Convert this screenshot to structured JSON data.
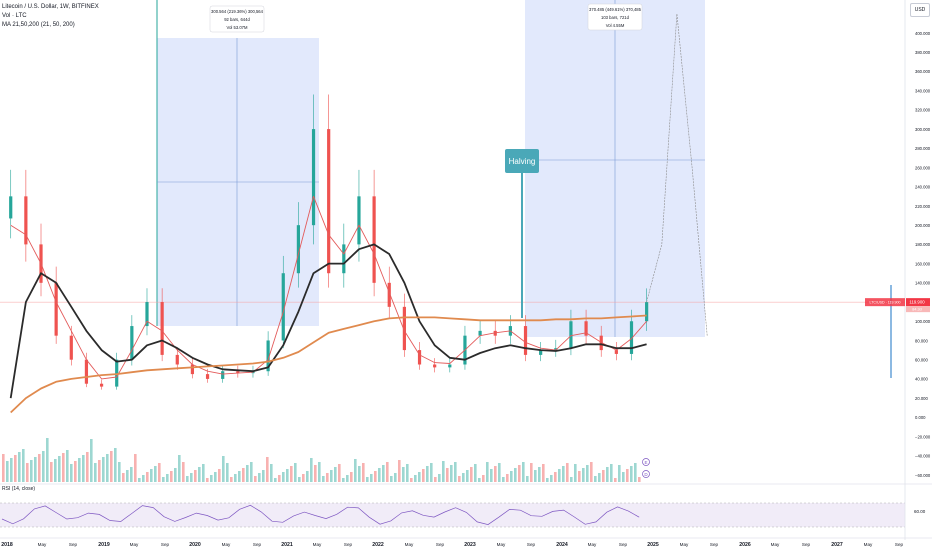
{
  "header": {
    "symbol_line": "Litecoin / U.S. Dollar, 1W, BITFINEX",
    "vol_line": "Vol · LTC",
    "ma_line": "MA 21,50,200 (21, 50, 200)",
    "currency_button": "USD"
  },
  "colors": {
    "candle_up": "#26a69a",
    "candle_down": "#ef5350",
    "ma21": "#e35b5b",
    "ma50": "#2b2b2b",
    "ma200": "#e08a4e",
    "range_fill": "#dbe3fb",
    "range_line": "#2962ff",
    "halving_marker": "#4aa8b8",
    "rsi_line": "#7e57c2",
    "last_price_badge": "#f23645"
  },
  "price_axis": {
    "labels": [
      "400.000",
      "380.000",
      "360.000",
      "340.000",
      "320.000",
      "300.000",
      "280.000",
      "260.000",
      "240.000",
      "220.000",
      "200.000",
      "180.000",
      "160.000",
      "140.000",
      "120.000",
      "100.000",
      "80.000",
      "60.000",
      "40.000",
      "20.000",
      "0.000",
      "−20.000",
      "−40.000",
      "−60.000"
    ],
    "last_price": "119.900",
    "last_price_sub": "84.3d"
  },
  "rsi": {
    "label": "RSI (14, close)",
    "axis_label": "60.00"
  },
  "time_axis": {
    "labels": [
      "2018",
      "May",
      "Sep",
      "2019",
      "May",
      "Sep",
      "2020",
      "May",
      "Sep",
      "2021",
      "May",
      "Sep",
      "2022",
      "May",
      "Sep",
      "2023",
      "May",
      "Sep",
      "2024",
      "May",
      "Sep",
      "2025",
      "May",
      "Sep",
      "2026",
      "May",
      "Sep",
      "2027",
      "May",
      "Sep"
    ]
  },
  "annotations": {
    "range1": {
      "line1": "300.564 (219.36%) 300,564",
      "line2": "92 bars, 644d",
      "line3": "Vol 53.07M"
    },
    "range2": {
      "line1": "370.485 (449.61%) 370,485",
      "line2": "103 bars, 721d",
      "line3": "Vol 4.55M"
    },
    "halving": "Halving",
    "event_markers": [
      "E",
      "D"
    ]
  },
  "chart_data": {
    "type": "candlestick",
    "title": "Litecoin / U.S. Dollar, 1W, BITFINEX",
    "ylim": [
      -65,
      420
    ],
    "x": [
      "2018-01",
      "2018-03",
      "2018-05",
      "2018-07",
      "2018-09",
      "2018-11",
      "2019-01",
      "2019-03",
      "2019-05",
      "2019-07",
      "2019-09",
      "2019-11",
      "2020-01",
      "2020-03",
      "2020-05",
      "2020-07",
      "2020-09",
      "2020-11",
      "2021-01",
      "2021-03",
      "2021-05",
      "2021-07",
      "2021-09",
      "2021-11",
      "2022-01",
      "2022-03",
      "2022-05",
      "2022-07",
      "2022-09",
      "2022-11",
      "2023-01",
      "2023-03",
      "2023-05",
      "2023-07",
      "2023-09",
      "2023-11",
      "2024-01",
      "2024-03",
      "2024-05",
      "2024-07",
      "2024-09",
      "2024-11",
      "2025-01"
    ],
    "close": [
      230,
      180,
      140,
      85,
      60,
      35,
      32,
      60,
      95,
      120,
      65,
      55,
      45,
      40,
      48,
      46,
      48,
      80,
      150,
      200,
      300,
      150,
      180,
      230,
      140,
      115,
      70,
      55,
      52,
      55,
      85,
      90,
      85,
      95,
      65,
      70,
      72,
      100,
      85,
      70,
      66,
      100,
      119.9
    ],
    "series": [
      {
        "name": "MA 21",
        "values": [
          200,
          190,
          160,
          120,
          90,
          60,
          40,
          42,
          70,
          100,
          90,
          70,
          55,
          48,
          45,
          46,
          47,
          60,
          110,
          170,
          230,
          190,
          170,
          200,
          170,
          130,
          90,
          65,
          57,
          56,
          70,
          85,
          88,
          90,
          78,
          72,
          70,
          85,
          88,
          78,
          70,
          82,
          100
        ]
      },
      {
        "name": "MA 50",
        "values": [
          20,
          120,
          150,
          140,
          115,
          90,
          70,
          58,
          60,
          75,
          80,
          72,
          62,
          55,
          50,
          49,
          48,
          52,
          75,
          110,
          150,
          160,
          160,
          175,
          180,
          170,
          140,
          100,
          75,
          62,
          60,
          67,
          72,
          75,
          72,
          70,
          69,
          72,
          76,
          76,
          72,
          72,
          76
        ]
      },
      {
        "name": "MA 200",
        "values": [
          5,
          20,
          30,
          37,
          40,
          42,
          44,
          45,
          47,
          49,
          50,
          51,
          52,
          53,
          54,
          55,
          56,
          58,
          62,
          68,
          78,
          88,
          92,
          96,
          100,
          103,
          104,
          104,
          104,
          103,
          102,
          101,
          101,
          101,
          101,
          101,
          102,
          102,
          103,
          103,
          104,
          105,
          106
        ]
      }
    ],
    "projection": {
      "name": "Projection",
      "x": [
        "2025-01",
        "2025-03",
        "2025-05",
        "2025-07",
        "2025-09"
      ],
      "values": [
        119.9,
        180,
        420,
        260,
        85
      ]
    }
  }
}
